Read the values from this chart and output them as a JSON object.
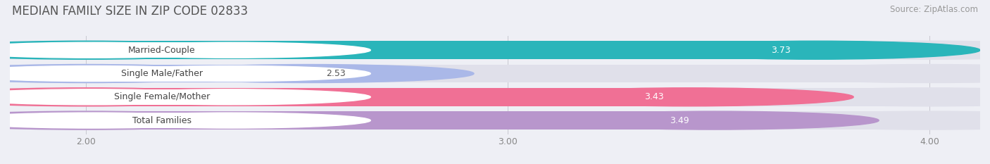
{
  "title": "MEDIAN FAMILY SIZE IN ZIP CODE 02833",
  "source": "Source: ZipAtlas.com",
  "categories": [
    "Married-Couple",
    "Single Male/Father",
    "Single Female/Mother",
    "Total Families"
  ],
  "values": [
    3.73,
    2.53,
    3.43,
    3.49
  ],
  "bar_colors": [
    "#2ab5ba",
    "#aab8e8",
    "#f07095",
    "#b896cc"
  ],
  "x_min": 2.0,
  "x_max": 4.0,
  "x_ticks": [
    2.0,
    3.0,
    4.0
  ],
  "x_tick_labels": [
    "2.00",
    "3.00",
    "4.00"
  ],
  "bar_height": 0.78,
  "background_color": "#eeeff5",
  "plot_bg_color": "#eeeff5",
  "title_fontsize": 12,
  "source_fontsize": 8.5,
  "label_fontsize": 9,
  "value_fontsize": 9,
  "track_color": "#e0e0ea",
  "track_border_color": "#d0d0da"
}
